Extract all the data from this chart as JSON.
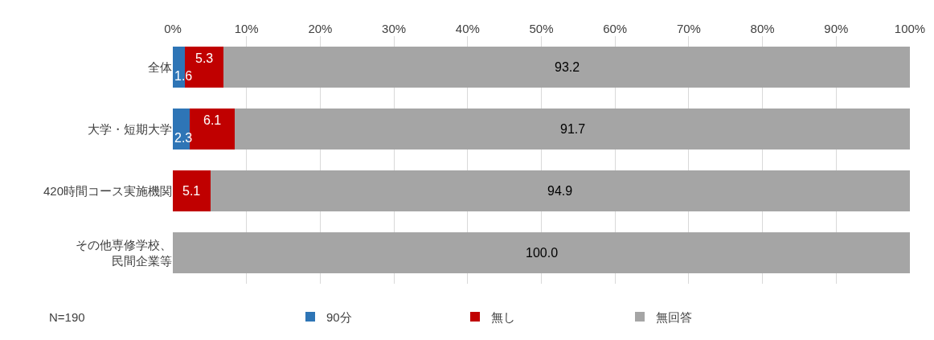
{
  "chart_data": {
    "type": "bar",
    "orientation": "horizontal",
    "stacked": true,
    "categories": [
      "全体",
      "大学・短期大学",
      "420時間コース実施機関",
      "その他専修学校、民間企業等"
    ],
    "series": [
      {
        "name": "90分",
        "color": "#2e75b6",
        "values": [
          1.6,
          2.3,
          0,
          0
        ],
        "value_labels": [
          "1.6",
          "2.3",
          null,
          null
        ]
      },
      {
        "name": "無し",
        "color": "#c00000",
        "values": [
          5.3,
          6.1,
          5.1,
          0
        ],
        "value_labels": [
          "5.3",
          "6.1",
          "5.1",
          null
        ]
      },
      {
        "name": "無回答",
        "color": "#a5a5a5",
        "values": [
          93.2,
          91.7,
          94.9,
          100.0
        ],
        "value_labels": [
          "93.2",
          "91.7",
          "94.9",
          "100.0"
        ]
      }
    ],
    "xlim": [
      0,
      100
    ],
    "xticks": [
      {
        "value": 0,
        "label": "0%"
      },
      {
        "value": 10,
        "label": "10%"
      },
      {
        "value": 20,
        "label": "20%"
      },
      {
        "value": 30,
        "label": "30%"
      },
      {
        "value": 40,
        "label": "40%"
      },
      {
        "value": 50,
        "label": "50%"
      },
      {
        "value": 60,
        "label": "60%"
      },
      {
        "value": 70,
        "label": "70%"
      },
      {
        "value": 80,
        "label": "80%"
      },
      {
        "value": 90,
        "label": "90%"
      },
      {
        "value": 100,
        "label": "100%"
      }
    ],
    "grid": "x",
    "legend": "bottom",
    "annotations": [
      "N=190"
    ]
  }
}
